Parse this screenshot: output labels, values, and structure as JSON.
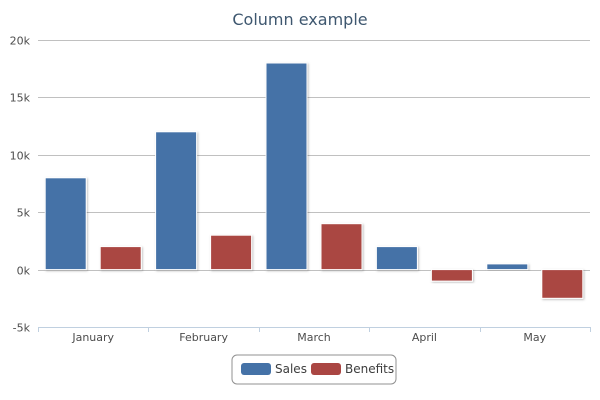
{
  "chart_data": {
    "type": "bar",
    "title": "Column example",
    "categories": [
      "January",
      "February",
      "March",
      "April",
      "May"
    ],
    "series": [
      {
        "name": "Sales",
        "color": "#4572a7",
        "values": [
          8000,
          12000,
          18000,
          2000,
          500
        ]
      },
      {
        "name": "Benefits",
        "color": "#aa4643",
        "values": [
          2000,
          3000,
          4000,
          -1000,
          -2500
        ]
      }
    ],
    "ylim": [
      -5000,
      20000
    ],
    "yticks": [
      -5000,
      0,
      5000,
      10000,
      15000,
      20000
    ],
    "ytick_labels": [
      "-5k",
      "0k",
      "5k",
      "10k",
      "15k",
      "20k"
    ],
    "xlabel": "",
    "ylabel": "",
    "grid": true,
    "legend": "bottom-center"
  }
}
